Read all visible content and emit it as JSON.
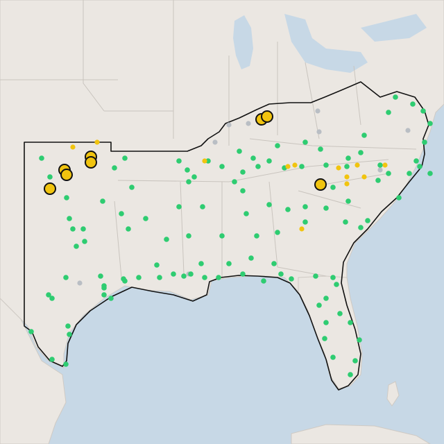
{
  "map": {
    "colors": {
      "water": "#c7d8e6",
      "land": "#ebe7e2",
      "region_outline": "#111111",
      "marker_green": "#2ecc71",
      "marker_yellow": "#f1c40f",
      "marker_gray": "#b9bec4"
    },
    "legend_categories": [
      "green",
      "yellow",
      "gray"
    ]
  }
}
